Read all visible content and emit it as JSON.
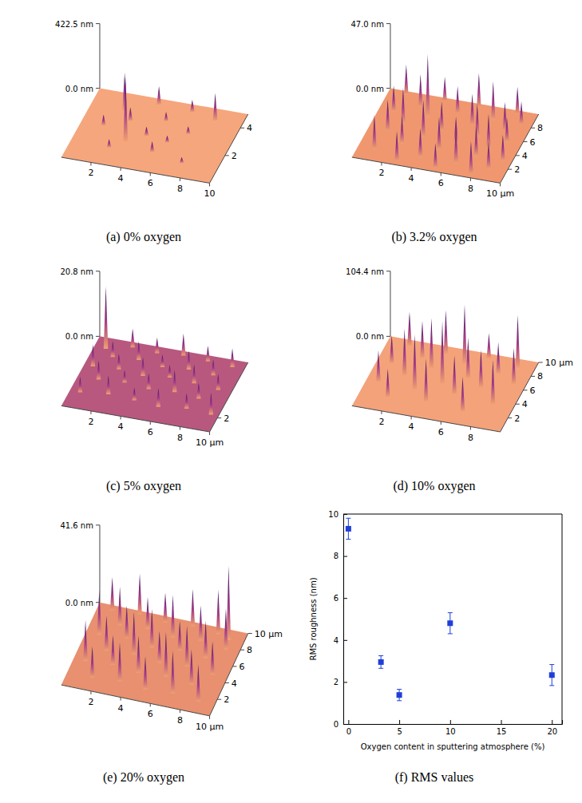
{
  "chart_data": [
    {
      "type": "surface",
      "caption": "(a) 0% oxygen",
      "color": "#f6a67c",
      "xlim": [
        0,
        10
      ],
      "xticks": [
        2,
        4,
        6,
        8,
        10
      ],
      "ylim": [
        0,
        5
      ],
      "yticks": [
        2,
        4
      ],
      "zlim": [
        0,
        422.5
      ],
      "zticks": [
        {
          "value": 0,
          "label": "0.0 nm"
        },
        {
          "value": 422.5,
          "label": "422.5 nm"
        }
      ],
      "peaks": {
        "x": [
          4.2,
          6.5,
          8.2,
          2.3,
          5.2,
          3.0,
          7.0,
          1.5,
          4.5,
          6.0,
          3.4,
          5.4,
          2.6,
          7.6
        ],
        "y": [
          4.6,
          4.5,
          4.2,
          3.8,
          3.6,
          3.2,
          3.0,
          2.6,
          2.4,
          2.2,
          1.8,
          1.4,
          1.2,
          1.0
        ],
        "z": [
          120,
          80,
          180,
          250,
          60,
          90,
          50,
          70,
          60,
          45,
          420,
          70,
          55,
          40
        ]
      }
    },
    {
      "type": "surface",
      "caption": "(b) 3.2% oxygen",
      "color": "#f0976f",
      "xlim": [
        0,
        10
      ],
      "xticks": [
        2,
        4,
        6,
        8,
        {
          "value": 10,
          "label": "10 µm"
        }
      ],
      "ylim": [
        0,
        10
      ],
      "yticks": [
        2,
        4,
        6,
        8
      ],
      "zlim": [
        0,
        47.0
      ],
      "zticks": [
        {
          "value": 0,
          "label": "0.0 nm"
        },
        {
          "value": 47.0,
          "label": "47.0 nm"
        }
      ],
      "peaks": {
        "x": [
          1.2,
          3.8,
          6.1,
          8.7,
          2.5,
          5.0,
          7.4,
          9.3,
          1.0,
          3.3,
          6.3,
          8.5,
          2.0,
          4.6,
          7.0,
          9.0,
          1.3,
          3.7,
          5.9,
          8.1,
          2.6,
          5.1,
          7.6,
          9.4,
          1.1,
          4.2,
          6.6,
          8.8,
          2.9,
          5.5,
          7.9
        ],
        "y": [
          9.5,
          9.5,
          9.5,
          9.5,
          8.2,
          8.2,
          8.2,
          8.2,
          7.0,
          7.0,
          7.0,
          7.0,
          5.6,
          5.6,
          5.6,
          5.6,
          4.3,
          4.3,
          4.3,
          4.3,
          3.0,
          3.0,
          3.0,
          3.0,
          1.6,
          1.6,
          1.6,
          1.6,
          0.5,
          0.5,
          0.5
        ],
        "z": [
          22,
          18,
          25,
          20,
          24,
          20,
          28,
          17,
          19,
          46,
          23,
          21,
          26,
          21,
          24,
          18,
          23,
          27,
          19,
          25,
          20,
          24,
          22,
          19,
          25,
          21,
          27,
          20,
          22,
          18,
          24
        ]
      }
    },
    {
      "type": "surface",
      "caption": "(c) 5% oxygen",
      "color": "#b8587f",
      "xlim": [
        0,
        10
      ],
      "xticks": [
        2,
        4,
        6,
        8,
        {
          "value": 10,
          "label": "10 µm"
        }
      ],
      "ylim": [
        0,
        10
      ],
      "yticks": [
        2
      ],
      "zlim": [
        0,
        20.8
      ],
      "zticks": [
        {
          "value": 0,
          "label": "0.0 nm"
        },
        {
          "value": 20.8,
          "label": "20.8 nm"
        }
      ],
      "peaks": {
        "x": [
          2.4,
          4.1,
          5.8,
          7.5,
          9.2,
          0.8,
          1.5,
          3.2,
          4.9,
          6.6,
          8.3,
          0.6,
          2.3,
          4.0,
          5.7,
          7.4,
          9.1,
          1.4,
          3.1,
          4.8,
          6.5,
          8.2,
          0.7,
          2.5,
          4.3,
          6.0,
          7.8,
          9.5
        ],
        "y": [
          9.3,
          9.1,
          9.4,
          9.2,
          9.0,
          8.5,
          7.6,
          7.8,
          7.4,
          7.7,
          7.5,
          5.9,
          6.1,
          5.8,
          6.2,
          6.0,
          5.7,
          4.3,
          4.5,
          4.2,
          4.4,
          4.1,
          2.2,
          2.6,
          2.4,
          2.1,
          2.5,
          2.3
        ],
        "z": [
          6,
          5,
          7,
          5,
          6,
          20,
          5,
          6,
          4,
          6,
          5,
          7,
          5,
          6,
          4,
          6,
          5,
          6,
          4,
          5,
          7,
          5,
          5,
          6,
          4,
          6,
          5,
          7
        ]
      }
    },
    {
      "type": "surface",
      "caption": "(d) 10% oxygen",
      "color": "#f4a27a",
      "xlim": [
        0,
        10
      ],
      "xticks": [
        2,
        4,
        6,
        8
      ],
      "ylim": [
        0,
        10
      ],
      "yticks": [
        2,
        4,
        6,
        8,
        {
          "value": 10,
          "label": "10 µm"
        }
      ],
      "zlim": [
        0,
        104.4
      ],
      "zticks": [
        {
          "value": 0,
          "label": "0.0 nm"
        },
        {
          "value": 104.4,
          "label": "104.4 nm"
        }
      ],
      "peaks": {
        "x": [
          1.5,
          4.0,
          6.8,
          8.9,
          2.7,
          5.5,
          7.9,
          1.0,
          3.6,
          6.2,
          9.2,
          2.2,
          4.8,
          7.3,
          0.8,
          3.3,
          5.9,
          8.6,
          1.9,
          4.4,
          7.0
        ],
        "y": [
          9.2,
          9.0,
          9.4,
          8.8,
          7.9,
          8.1,
          7.6,
          6.5,
          6.8,
          6.3,
          6.6,
          5.2,
          5.0,
          5.4,
          3.8,
          3.6,
          3.9,
          3.5,
          2.0,
          2.3,
          1.8
        ],
        "z": [
          55,
          70,
          40,
          85,
          60,
          95,
          50,
          45,
          80,
          65,
          58,
          75,
          100,
          60,
          50,
          88,
          62,
          70,
          45,
          68,
          55
        ]
      }
    },
    {
      "type": "surface",
      "caption": "(e) 20% oxygen",
      "color": "#e8906f",
      "xlim": [
        0,
        10
      ],
      "xticks": [
        2,
        4,
        6,
        8,
        {
          "value": 10,
          "label": "10 µm"
        }
      ],
      "ylim": [
        0,
        10
      ],
      "yticks": [
        2,
        4,
        6,
        8,
        {
          "value": 10,
          "label": "10 µm"
        }
      ],
      "zlim": [
        0,
        41.6
      ],
      "zticks": [
        {
          "value": 0,
          "label": "0.0 nm"
        },
        {
          "value": 41.6,
          "label": "41.6 nm"
        }
      ],
      "peaks": {
        "x": [
          1.0,
          2.8,
          4.6,
          6.4,
          8.2,
          9.0,
          1.9,
          3.7,
          5.5,
          7.3,
          9.1,
          0.9,
          2.7,
          4.5,
          6.3,
          8.1,
          1.8,
          3.6,
          5.4,
          7.2,
          9.0,
          0.8,
          2.6,
          4.4,
          6.2,
          8.0,
          1.7,
          3.5,
          5.3,
          7.1,
          8.9
        ],
        "y": [
          9.4,
          9.6,
          9.3,
          9.5,
          9.2,
          8.8,
          7.9,
          8.2,
          7.8,
          8.1,
          7.7,
          6.4,
          6.6,
          6.2,
          6.5,
          6.3,
          4.8,
          5.0,
          4.7,
          4.9,
          4.6,
          3.2,
          3.4,
          3.1,
          3.3,
          3.0,
          1.5,
          1.7,
          1.4,
          1.6,
          1.3
        ],
        "z": [
          18,
          22,
          16,
          20,
          24,
          40,
          21,
          17,
          23,
          19,
          22,
          24,
          18,
          21,
          16,
          20,
          19,
          23,
          17,
          22,
          18,
          22,
          16,
          20,
          24,
          19,
          17,
          21,
          18,
          23,
          20
        ]
      }
    },
    {
      "type": "scatter",
      "caption": "(f) RMS values",
      "color": "#1f3fd8",
      "marker": "square",
      "x_label": "Oxygen content in sputtering atmosphere (%)",
      "y_label": "RMS roughness (nm)",
      "x": [
        0,
        3.2,
        5,
        10,
        20
      ],
      "values": [
        9.3,
        2.95,
        1.38,
        4.8,
        2.33
      ],
      "errors": [
        0.5,
        0.3,
        0.27,
        0.5,
        0.5
      ],
      "xlim": [
        -0.5,
        21
      ],
      "xticks": [
        0,
        5,
        10,
        15,
        20
      ],
      "ylim": [
        0,
        10
      ],
      "yticks": [
        0,
        2,
        4,
        6,
        8,
        10
      ]
    }
  ]
}
